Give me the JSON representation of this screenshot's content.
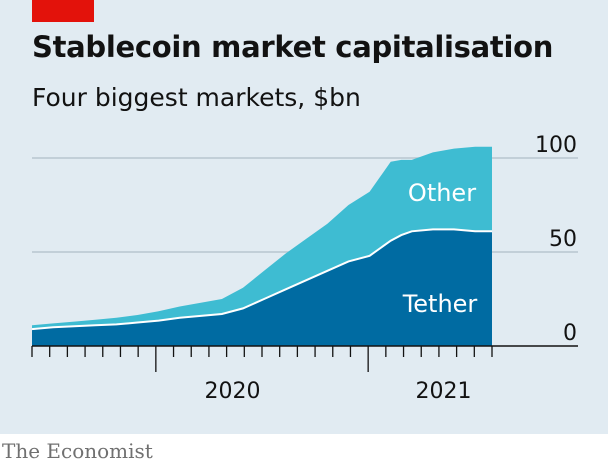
{
  "header": {
    "title": "Stablecoin market capitalisation",
    "subtitle": "Four biggest markets, $bn"
  },
  "footer": {
    "credit": "The Economist"
  },
  "colors": {
    "background": "#e1ebf2",
    "tether": "#006ba2",
    "other": "#3ebcd2",
    "grid": "#b7c6cf",
    "accent": "#e3120b"
  },
  "chart_data": {
    "type": "area",
    "stacked": true,
    "xlabel": "",
    "ylabel": "",
    "x_unit": "year",
    "xlim": [
      2019.55,
      2021.73
    ],
    "ylim": [
      0,
      100
    ],
    "yticks": [
      "0",
      "50",
      "100"
    ],
    "xtick_labels": [
      {
        "label": "2020",
        "x": 2020.5
      },
      {
        "label": "2021",
        "x": 2021.5
      }
    ],
    "y_axis_position": "right",
    "grid": true,
    "x": [
      2019.55,
      2019.65,
      2019.75,
      2019.85,
      2019.95,
      2020.05,
      2020.15,
      2020.25,
      2020.35,
      2020.45,
      2020.55,
      2020.65,
      2020.75,
      2020.85,
      2020.95,
      2021.05,
      2021.15,
      2021.25,
      2021.3,
      2021.35,
      2021.45,
      2021.55,
      2021.65,
      2021.73
    ],
    "series": [
      {
        "name": "Tether",
        "values": [
          9,
          10,
          10.5,
          11,
          11.5,
          12.5,
          13.5,
          15,
          16,
          17,
          20,
          25,
          30,
          35,
          40,
          45,
          48,
          56,
          59,
          61,
          62,
          62,
          61,
          61
        ]
      },
      {
        "name": "Other",
        "values": [
          2,
          2,
          2.5,
          3,
          3.5,
          4,
          5,
          6,
          7,
          8,
          11,
          15,
          19,
          22,
          25,
          30,
          34,
          42,
          40,
          38,
          41,
          43,
          45,
          45
        ]
      }
    ]
  }
}
